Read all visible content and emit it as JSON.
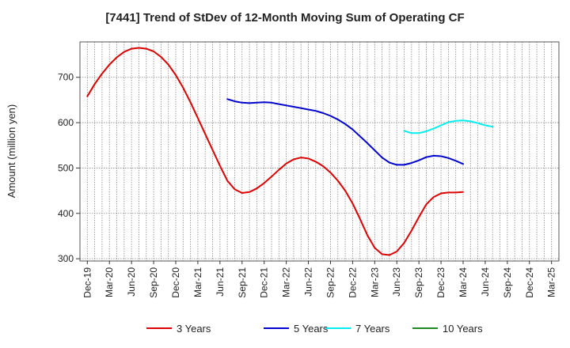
{
  "chart_data": {
    "type": "line",
    "title": "[7441]  Trend of StDev of 12-Month Moving Sum of Operating CF",
    "xlabel": "",
    "ylabel": "Amount (million yen)",
    "ylim": [
      295,
      778
    ],
    "y_ticks": [
      300,
      400,
      500,
      600,
      700
    ],
    "x_tick_labels": [
      "Dec-19",
      "Mar-20",
      "Jun-20",
      "Sep-20",
      "Dec-20",
      "Mar-21",
      "Jun-21",
      "Sep-21",
      "Dec-21",
      "Mar-22",
      "Jun-22",
      "Sep-22",
      "Dec-22",
      "Mar-23",
      "Jun-23",
      "Sep-23",
      "Dec-23",
      "Mar-24",
      "Jun-24",
      "Sep-24",
      "Dec-24",
      "Mar-25"
    ],
    "grid": true,
    "legend_position": "bottom",
    "series": [
      {
        "name": "3 Years",
        "color": "#dd0000",
        "points": [
          [
            "Dec-19",
            658
          ],
          [
            "Jan-20",
            685
          ],
          [
            "Feb-20",
            708
          ],
          [
            "Mar-20",
            728
          ],
          [
            "Apr-20",
            744
          ],
          [
            "May-20",
            756
          ],
          [
            "Jun-20",
            763
          ],
          [
            "Jul-20",
            765
          ],
          [
            "Aug-20",
            763
          ],
          [
            "Sep-20",
            757
          ],
          [
            "Oct-20",
            745
          ],
          [
            "Nov-20",
            728
          ],
          [
            "Dec-20",
            705
          ],
          [
            "Jan-21",
            677
          ],
          [
            "Feb-21",
            645
          ],
          [
            "Mar-21",
            610
          ],
          [
            "Apr-21",
            575
          ],
          [
            "May-21",
            540
          ],
          [
            "Jun-21",
            505
          ],
          [
            "Jul-21",
            472
          ],
          [
            "Aug-21",
            453
          ],
          [
            "Sep-21",
            445
          ],
          [
            "Oct-21",
            447
          ],
          [
            "Nov-21",
            455
          ],
          [
            "Dec-21",
            467
          ],
          [
            "Jan-22",
            481
          ],
          [
            "Feb-22",
            496
          ],
          [
            "Mar-22",
            510
          ],
          [
            "Apr-22",
            519
          ],
          [
            "May-22",
            523
          ],
          [
            "Jun-22",
            521
          ],
          [
            "Jul-22",
            514
          ],
          [
            "Aug-22",
            504
          ],
          [
            "Sep-22",
            490
          ],
          [
            "Oct-22",
            472
          ],
          [
            "Nov-22",
            450
          ],
          [
            "Dec-22",
            422
          ],
          [
            "Jan-23",
            388
          ],
          [
            "Feb-23",
            352
          ],
          [
            "Mar-23",
            324
          ],
          [
            "Apr-23",
            310
          ],
          [
            "May-23",
            308
          ],
          [
            "Jun-23",
            316
          ],
          [
            "Jul-23",
            335
          ],
          [
            "Aug-23",
            362
          ],
          [
            "Sep-23",
            392
          ],
          [
            "Oct-23",
            420
          ],
          [
            "Nov-23",
            436
          ],
          [
            "Dec-23",
            444
          ],
          [
            "Jan-24",
            446
          ],
          [
            "Feb-24",
            446
          ],
          [
            "Mar-24",
            447
          ]
        ]
      },
      {
        "name": "5 Years",
        "color": "#0000cc",
        "points": [
          [
            "Jul-21",
            652
          ],
          [
            "Aug-21",
            647
          ],
          [
            "Sep-21",
            644
          ],
          [
            "Oct-21",
            643
          ],
          [
            "Nov-21",
            644
          ],
          [
            "Dec-21",
            645
          ],
          [
            "Jan-22",
            644
          ],
          [
            "Feb-22",
            641
          ],
          [
            "Mar-22",
            638
          ],
          [
            "Apr-22",
            635
          ],
          [
            "May-22",
            632
          ],
          [
            "Jun-22",
            629
          ],
          [
            "Jul-22",
            626
          ],
          [
            "Aug-22",
            621
          ],
          [
            "Sep-22",
            615
          ],
          [
            "Oct-22",
            607
          ],
          [
            "Nov-22",
            597
          ],
          [
            "Dec-22",
            585
          ],
          [
            "Jan-23",
            570
          ],
          [
            "Feb-23",
            555
          ],
          [
            "Mar-23",
            539
          ],
          [
            "Apr-23",
            523
          ],
          [
            "May-23",
            512
          ],
          [
            "Jun-23",
            507
          ],
          [
            "Jul-23",
            507
          ],
          [
            "Aug-23",
            511
          ],
          [
            "Sep-23",
            517
          ],
          [
            "Oct-23",
            524
          ],
          [
            "Nov-23",
            527
          ],
          [
            "Dec-23",
            526
          ],
          [
            "Jan-24",
            522
          ],
          [
            "Feb-24",
            516
          ],
          [
            "Mar-24",
            509
          ]
        ]
      },
      {
        "name": "7 Years",
        "color": "#00eeee",
        "points": [
          [
            "Jul-23",
            582
          ],
          [
            "Aug-23",
            577
          ],
          [
            "Sep-23",
            577
          ],
          [
            "Oct-23",
            581
          ],
          [
            "Nov-23",
            587
          ],
          [
            "Dec-23",
            594
          ],
          [
            "Jan-24",
            601
          ],
          [
            "Feb-24",
            604
          ],
          [
            "Mar-24",
            605
          ],
          [
            "Apr-24",
            603
          ],
          [
            "May-24",
            599
          ],
          [
            "Jun-24",
            594
          ],
          [
            "Jul-24",
            591
          ]
        ]
      },
      {
        "name": "10 Years",
        "color": "#228822",
        "points": []
      }
    ]
  }
}
